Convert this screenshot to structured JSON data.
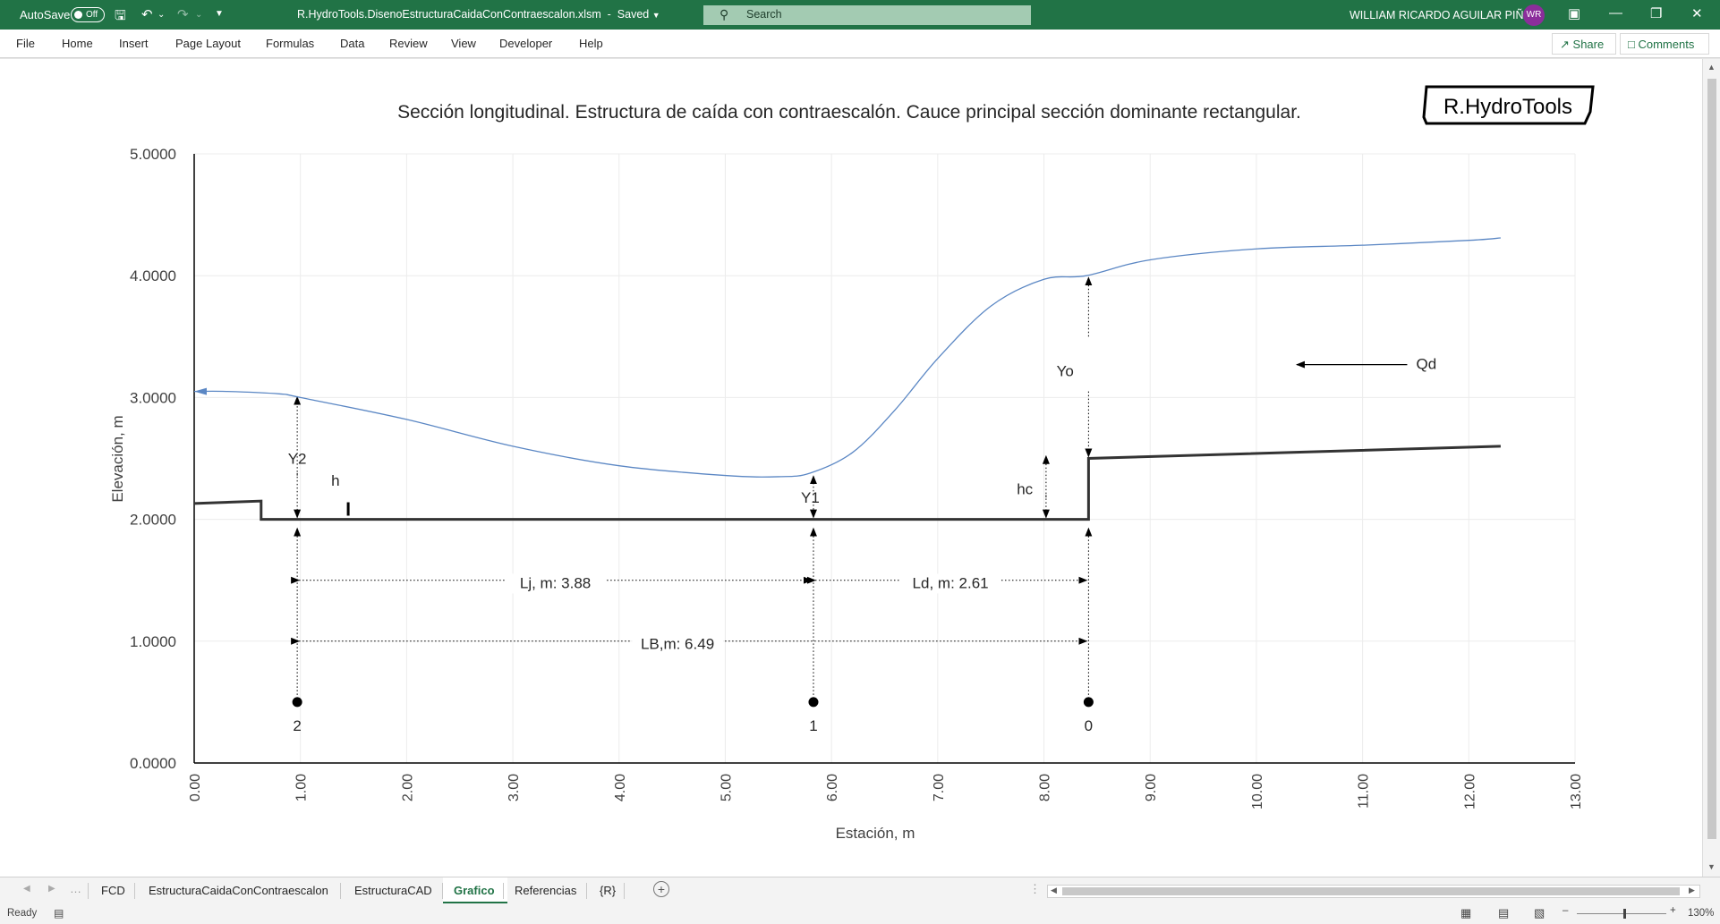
{
  "titlebar": {
    "autosave_label": "AutoSave",
    "autosave_state": "Off",
    "file_name": "R.HydroTools.DisenoEstructuraCaidaConContraescalon.xlsm",
    "save_status": "Saved",
    "search_placeholder": "Search",
    "user_name": "WILLIAM RICARDO AGUILAR PIÑA",
    "user_initials": "WR",
    "colors": {
      "ribbon": "#217346",
      "avatar": "#8b2e9b"
    }
  },
  "menu": {
    "tabs": [
      "File",
      "Home",
      "Insert",
      "Page Layout",
      "Formulas",
      "Data",
      "Review",
      "View",
      "Developer",
      "Help"
    ],
    "share_label": "Share",
    "comments_label": "Comments"
  },
  "chart_data": {
    "type": "line",
    "title": "Sección longitudinal. Estructura de caída con contraescalón. Cauce principal sección dominante rectangular.",
    "xlabel": "Estación, m",
    "ylabel": "Elevación, m",
    "xlim": [
      0,
      13
    ],
    "ylim": [
      0,
      5
    ],
    "x_ticks": [
      "0.00",
      "1.00",
      "2.00",
      "3.00",
      "4.00",
      "5.00",
      "6.00",
      "7.00",
      "8.00",
      "9.00",
      "10.00",
      "11.00",
      "12.00",
      "13.00"
    ],
    "y_ticks": [
      "0.0000",
      "1.0000",
      "2.0000",
      "3.0000",
      "4.0000",
      "5.0000"
    ],
    "grid": true,
    "logo_text": "R.HydroTools",
    "series": [
      {
        "color": "#5b87c4",
        "x": [
          0.0,
          0.3,
          0.8,
          1.0,
          2.0,
          3.0,
          4.0,
          5.0,
          5.5,
          5.8,
          6.2,
          6.6,
          7.0,
          7.5,
          8.0,
          8.4,
          9.0,
          10.0,
          11.0,
          12.0,
          12.3
        ],
        "y": [
          3.05,
          3.05,
          3.03,
          3.0,
          2.82,
          2.6,
          2.44,
          2.36,
          2.35,
          2.38,
          2.55,
          2.9,
          3.32,
          3.75,
          3.97,
          4.0,
          4.13,
          4.22,
          4.25,
          4.29,
          4.31
        ]
      },
      {
        "color": "#333333",
        "x": [
          0.0,
          0.63,
          0.63,
          1.0,
          5.8,
          8.42,
          8.42,
          12.3
        ],
        "y": [
          2.13,
          2.15,
          2.0,
          2.0,
          2.0,
          2.0,
          2.5,
          2.6
        ]
      }
    ],
    "annotations": [
      {
        "text": "Y2",
        "x": 0.97,
        "y": 2.5
      },
      {
        "text": "h",
        "x": 1.33,
        "y": 2.32
      },
      {
        "text": "Y1",
        "x": 5.8,
        "y": 2.18
      },
      {
        "text": "hc",
        "x": 7.82,
        "y": 2.25
      },
      {
        "text": "Yo",
        "x": 8.2,
        "y": 3.22
      },
      {
        "text": "Qd",
        "x": 11.6,
        "y": 3.28
      },
      {
        "text": "Lj, m: 3.88",
        "x": 3.4,
        "y": 1.48
      },
      {
        "text": "Ld, m: 2.61",
        "x": 7.12,
        "y": 1.48
      },
      {
        "text": "LB,m: 6.49",
        "x": 4.55,
        "y": 0.98
      }
    ],
    "section_points": [
      {
        "label": "2",
        "x": 0.97,
        "y": 0.5
      },
      {
        "label": "1",
        "x": 5.83,
        "y": 0.5
      },
      {
        "label": "0",
        "x": 8.42,
        "y": 0.5
      }
    ]
  },
  "sheets": {
    "tabs": [
      "FCD",
      "EstructuraCaidaConContraescalon",
      "EstructuraCAD",
      "Grafico",
      "Referencias",
      "{R}"
    ],
    "active": "Grafico"
  },
  "statusbar": {
    "status": "Ready",
    "zoom": "130%"
  }
}
